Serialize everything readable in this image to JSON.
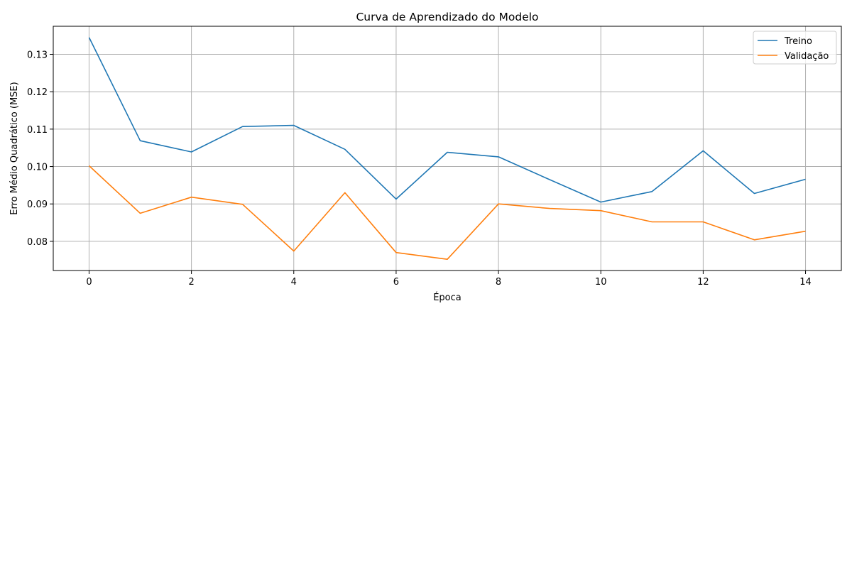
{
  "chart_data": {
    "type": "line",
    "title": "Curva de Aprendizado do Modelo",
    "xlabel": "Época",
    "ylabel": "Erro Médio Quadrático (MSE)",
    "x": [
      0,
      1,
      2,
      3,
      4,
      5,
      6,
      7,
      8,
      9,
      10,
      11,
      12,
      13,
      14
    ],
    "xlim": [
      -0.7,
      14.7
    ],
    "ylim": [
      0.0722,
      0.1375
    ],
    "xticks": [
      0,
      2,
      4,
      6,
      8,
      10,
      12,
      14
    ],
    "xtick_labels": [
      "0",
      "2",
      "4",
      "6",
      "8",
      "10",
      "12",
      "14"
    ],
    "yticks": [
      0.08,
      0.09,
      0.1,
      0.11,
      0.12,
      0.13
    ],
    "ytick_labels": [
      "0.08",
      "0.09",
      "0.10",
      "0.11",
      "0.12",
      "0.13"
    ],
    "grid": true,
    "legend_position": "top-right",
    "series": [
      {
        "name": "Treino",
        "color": "#1f77b4",
        "values": [
          0.1345,
          0.1069,
          0.1039,
          0.1107,
          0.111,
          0.1046,
          0.0913,
          0.1038,
          0.1026,
          0.0965,
          0.0905,
          0.0933,
          0.1042,
          0.0928,
          0.0966
        ]
      },
      {
        "name": "Validação",
        "color": "#ff7f0e",
        "values": [
          0.1002,
          0.0875,
          0.0918,
          0.0899,
          0.0774,
          0.093,
          0.077,
          0.0752,
          0.09,
          0.0888,
          0.0882,
          0.0852,
          0.0852,
          0.0804,
          0.0827
        ]
      }
    ]
  }
}
